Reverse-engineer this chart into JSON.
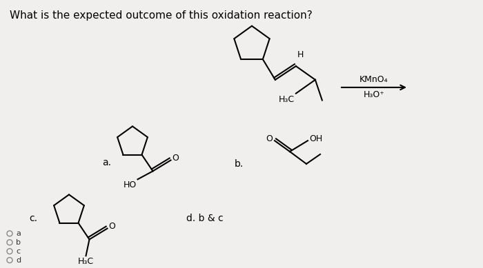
{
  "title": "What is the expected outcome of this oxidation reaction?",
  "bg_color": "#f0efed",
  "title_fontsize": 11,
  "reagent_top": "KMnO₄",
  "reagent_bottom": "H₃O⁺"
}
